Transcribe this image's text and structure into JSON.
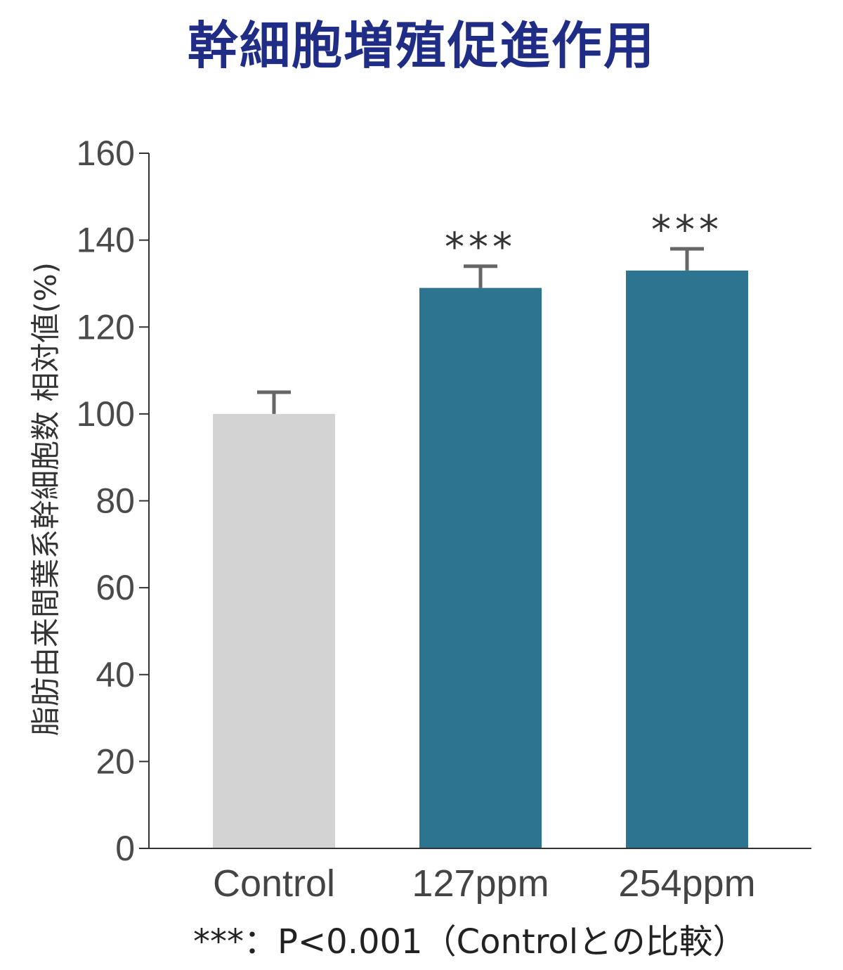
{
  "chart_data": {
    "type": "bar",
    "title": "幹細胞増殖促進作用",
    "ylabel": "脂肪由来間葉系幹細胞数 相対値(%)",
    "xlabel": "",
    "ylim": [
      0,
      160
    ],
    "yticks": [
      "0",
      "20",
      "40",
      "60",
      "80",
      "100",
      "120",
      "140",
      "160"
    ],
    "categories": [
      "Control",
      "127ppm",
      "254ppm"
    ],
    "values": [
      100,
      129,
      133
    ],
    "error_upper": [
      5,
      5,
      5
    ],
    "significance": [
      "",
      "***",
      "***"
    ],
    "bar_colors": [
      "#d3d3d3",
      "#2d7490",
      "#2d7490"
    ],
    "footnote": "***：P<0.001（Controlとの比較）",
    "grid": false
  },
  "colors": {
    "title": "#1f2d86",
    "axis": "#333333",
    "error_bar": "#666666"
  }
}
